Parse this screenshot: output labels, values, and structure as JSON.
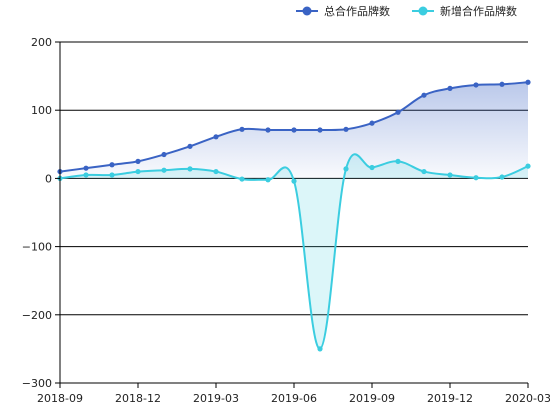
{
  "chart_data": {
    "type": "line",
    "x": [
      "2018-09",
      "2018-10",
      "2018-11",
      "2018-12",
      "2019-01",
      "2019-02",
      "2019-03",
      "2019-04",
      "2019-05",
      "2019-06",
      "2019-07",
      "2019-08",
      "2019-09",
      "2019-10",
      "2019-11",
      "2019-12",
      "2020-01",
      "2020-02",
      "2020-03"
    ],
    "x_ticks": [
      "2018-09",
      "2018-12",
      "2019-03",
      "2019-06",
      "2019-09",
      "2019-12",
      "2020-03"
    ],
    "ylim": [
      -300,
      200
    ],
    "y_ticks": [
      -300,
      -200,
      -100,
      0,
      100,
      200
    ],
    "y_tick_labels": [
      "−300",
      "−200",
      "−100",
      "0",
      "100",
      "200"
    ],
    "grid": true,
    "legend_position": "top-right",
    "series": [
      {
        "name": "总合作品牌数",
        "color": "#3a63c4",
        "fill": "gradient",
        "values": [
          10,
          15,
          20,
          25,
          35,
          47,
          61,
          72,
          71,
          71,
          71,
          72,
          81,
          97,
          122,
          132,
          137,
          138,
          141
        ]
      },
      {
        "name": "新增合作品牌数",
        "color": "#3bcde0",
        "fill": "solid-light",
        "values": [
          0,
          5,
          5,
          10,
          12,
          14,
          10,
          -1,
          -2,
          -4,
          -250,
          14,
          16,
          25,
          10,
          5,
          1,
          2,
          18
        ]
      }
    ]
  }
}
